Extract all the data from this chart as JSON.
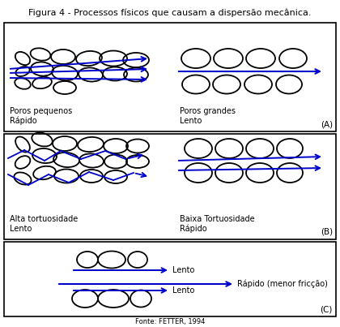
{
  "title": "Figura 4 - Processos físicos que causam a dispersão mecânica.",
  "bg_color": "#ffffff",
  "arrow_color": "#0000cc",
  "text_color": "#000000",
  "source_text": "Fonte: FETTER, 1994",
  "panel_A_label": "(A)",
  "panel_B_label": "(B)",
  "panel_C_label": "(C)",
  "label_A1": "Poros pequenos\nRápido",
  "label_A2": "Poros grandes\nLento",
  "label_B1": "Alta tortuosidade\nLento",
  "label_B2": "Baixa Tortuosidade\nRápido",
  "label_C1": "Lento",
  "label_C2": "Rápido (menor fricção)",
  "label_C3": "Lento"
}
